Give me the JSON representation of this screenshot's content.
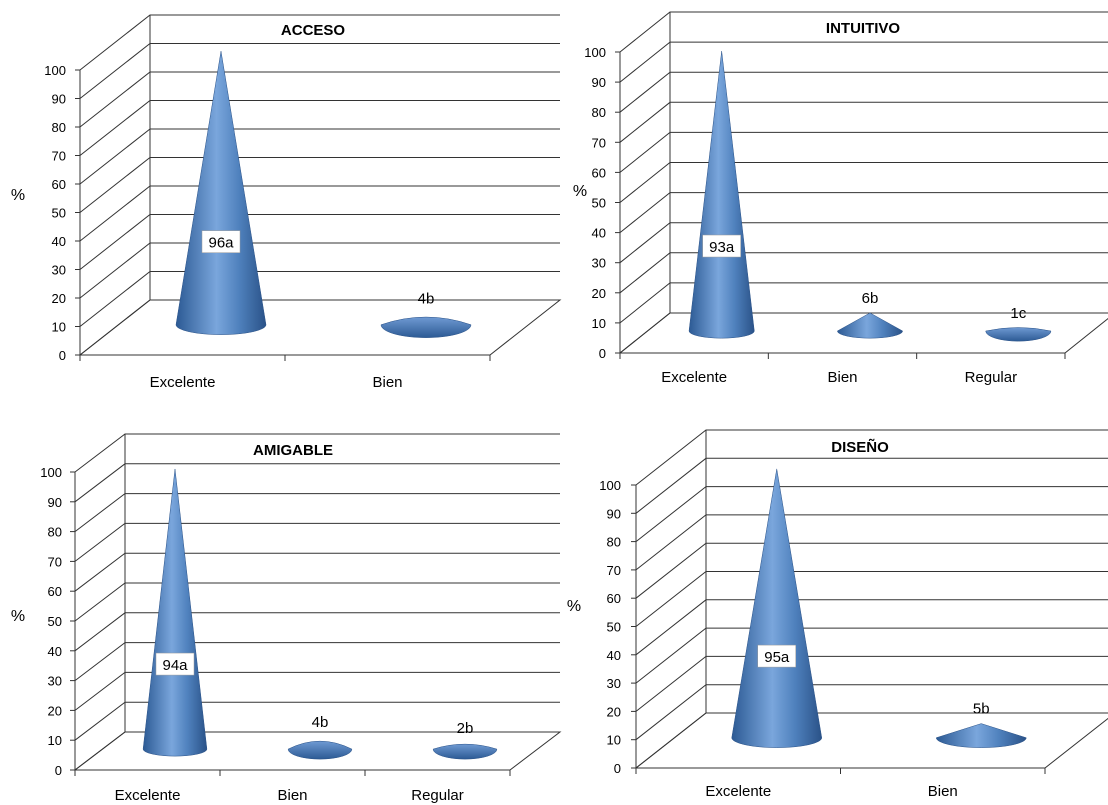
{
  "chart_data": [
    {
      "type": "bar",
      "shape": "cone-3d",
      "title": "ACCESO",
      "ylabel": "%",
      "ylim": [
        0,
        100
      ],
      "yticks": [
        0,
        10,
        20,
        30,
        40,
        50,
        60,
        70,
        80,
        90,
        100
      ],
      "categories": [
        "Excelente",
        "Bien"
      ],
      "values": [
        96,
        4
      ],
      "labels": [
        "96a",
        "4b"
      ],
      "grid": true,
      "color": "#4f81bd"
    },
    {
      "type": "bar",
      "shape": "cone-3d",
      "title": "INTUITIVO",
      "ylabel": "%",
      "ylim": [
        0,
        100
      ],
      "yticks": [
        0,
        10,
        20,
        30,
        40,
        50,
        60,
        70,
        80,
        90,
        100
      ],
      "categories": [
        "Excelente",
        "Bien",
        "Regular"
      ],
      "values": [
        93,
        6,
        1
      ],
      "labels": [
        "93a",
        "6b",
        "1c"
      ],
      "grid": true,
      "color": "#4f81bd"
    },
    {
      "type": "bar",
      "shape": "cone-3d",
      "title": "AMIGABLE",
      "ylabel": "%",
      "ylim": [
        0,
        100
      ],
      "yticks": [
        0,
        10,
        20,
        30,
        40,
        50,
        60,
        70,
        80,
        90,
        100
      ],
      "categories": [
        "Excelente",
        "Bien",
        "Regular"
      ],
      "values": [
        94,
        4,
        2
      ],
      "labels": [
        "94a",
        "4b",
        "2b"
      ],
      "grid": true,
      "color": "#4f81bd"
    },
    {
      "type": "bar",
      "shape": "cone-3d",
      "title": "DISEÑO",
      "ylabel": "%",
      "ylim": [
        0,
        100
      ],
      "yticks": [
        0,
        10,
        20,
        30,
        40,
        50,
        60,
        70,
        80,
        90,
        100
      ],
      "categories": [
        "Excelente",
        "Bien"
      ],
      "values": [
        95,
        5
      ],
      "labels": [
        "95a",
        "5b"
      ],
      "grid": true,
      "color": "#4f81bd"
    }
  ]
}
